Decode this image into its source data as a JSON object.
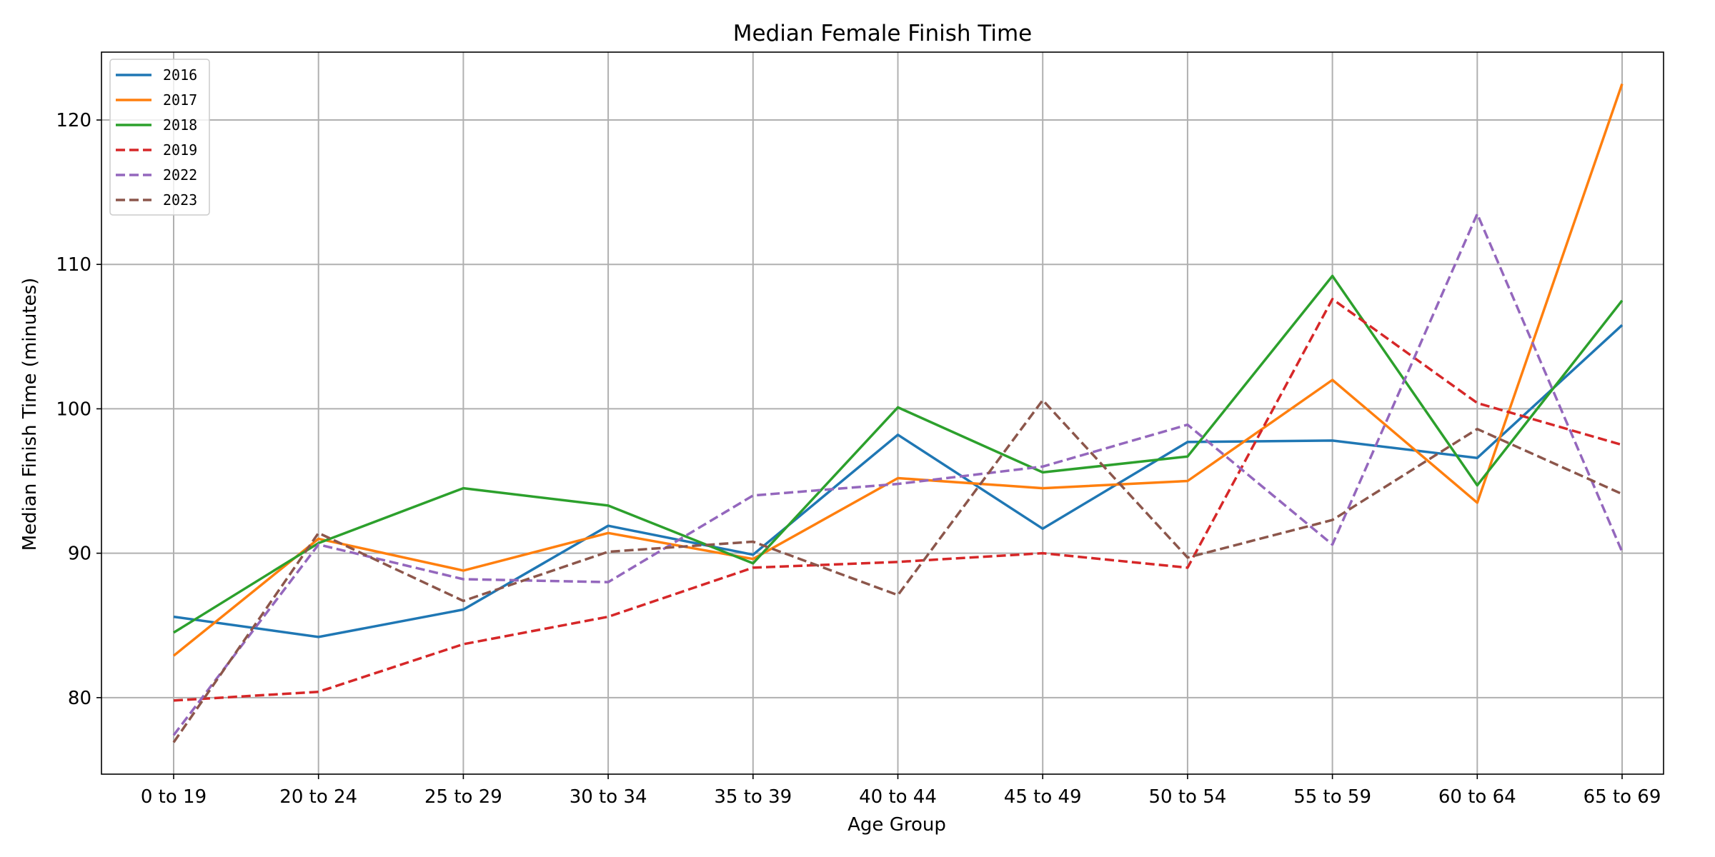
{
  "chart_data": {
    "type": "line",
    "title": "Median Female Finish Time",
    "xlabel": "Age Group",
    "ylabel": "Median Finish Time (minutes)",
    "categories": [
      "0 to 19",
      "20 to 24",
      "25 to 29",
      "30 to 34",
      "35 to 39",
      "40 to 44",
      "45 to 49",
      "50 to 54",
      "55 to 59",
      "60 to 64",
      "65 to 69"
    ],
    "ylim": [
      74.7,
      124.7
    ],
    "yticks": [
      80,
      90,
      100,
      110,
      120
    ],
    "grid": true,
    "legend_position": "top-left",
    "series": [
      {
        "name": "2016",
        "color": "#1f77b4",
        "dashed": false,
        "values": [
          85.6,
          84.2,
          86.1,
          91.9,
          89.9,
          98.2,
          91.7,
          97.7,
          97.8,
          96.6,
          105.8
        ]
      },
      {
        "name": "2017",
        "color": "#ff7f0e",
        "dashed": false,
        "values": [
          82.9,
          91.0,
          88.8,
          91.4,
          89.6,
          95.2,
          94.5,
          95.0,
          102.0,
          93.5,
          122.5
        ]
      },
      {
        "name": "2018",
        "color": "#2ca02c",
        "dashed": false,
        "values": [
          84.5,
          90.7,
          94.5,
          93.3,
          89.3,
          100.1,
          95.6,
          96.7,
          109.2,
          94.7,
          107.5
        ]
      },
      {
        "name": "2019",
        "color": "#d62728",
        "dashed": true,
        "values": [
          79.8,
          80.4,
          83.7,
          85.6,
          89.0,
          89.4,
          90.0,
          89.0,
          107.6,
          100.4,
          97.5
        ]
      },
      {
        "name": "2022",
        "color": "#9467bd",
        "dashed": true,
        "values": [
          77.4,
          90.6,
          88.2,
          88.0,
          94.0,
          94.8,
          96.0,
          98.9,
          90.6,
          113.5,
          90.1
        ]
      },
      {
        "name": "2023",
        "color": "#8c564b",
        "dashed": true,
        "values": [
          76.9,
          91.4,
          86.7,
          90.1,
          90.8,
          87.1,
          100.6,
          89.7,
          92.3,
          98.6,
          94.1
        ]
      }
    ]
  }
}
